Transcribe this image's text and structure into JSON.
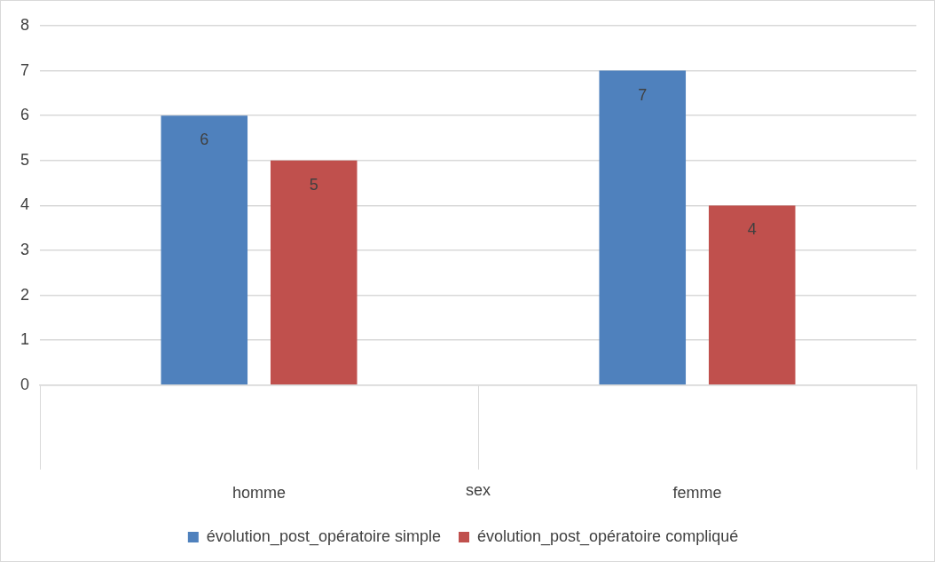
{
  "chart_data": {
    "type": "bar",
    "xlabel": "sex",
    "categories": [
      "homme",
      "femme"
    ],
    "series": [
      {
        "name": "évolution_post_opératoire simple",
        "color": "#4f81bd",
        "values": [
          6,
          7
        ]
      },
      {
        "name": "évolution_post_opératoire compliqué",
        "color": "#c0504d",
        "values": [
          5,
          4
        ]
      }
    ],
    "ylim": [
      0,
      8
    ],
    "yticks": [
      0,
      1,
      2,
      3,
      4,
      5,
      6,
      7,
      8
    ],
    "grid": "y",
    "legend": "bottom",
    "data_labels": true
  }
}
